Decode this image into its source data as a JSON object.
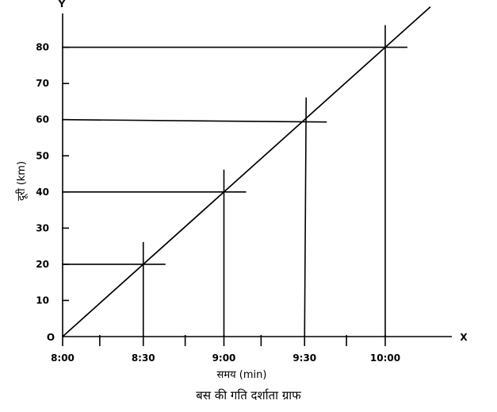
{
  "caption": "बस की गति दर्शाता ग्राफ",
  "chart_data": {
    "type": "line",
    "xlabel": "समय (min)",
    "ylabel": "दूरी (km)",
    "x_axis_letter": "X",
    "y_axis_letter": "Y",
    "origin_label": "O",
    "x_ticks": [
      "8:00",
      "8:30",
      "9:00",
      "9:30",
      "10:00"
    ],
    "y_ticks": [
      10,
      20,
      30,
      40,
      50,
      60,
      70,
      80
    ],
    "xlim": [
      "8:00",
      "10:15"
    ],
    "ylim": [
      0,
      88
    ],
    "grid": false,
    "series": [
      {
        "x": [
          "8:00",
          "8:30",
          "9:00",
          "9:30",
          "10:00"
        ],
        "values": [
          0,
          20,
          40,
          60,
          80
        ]
      }
    ]
  }
}
